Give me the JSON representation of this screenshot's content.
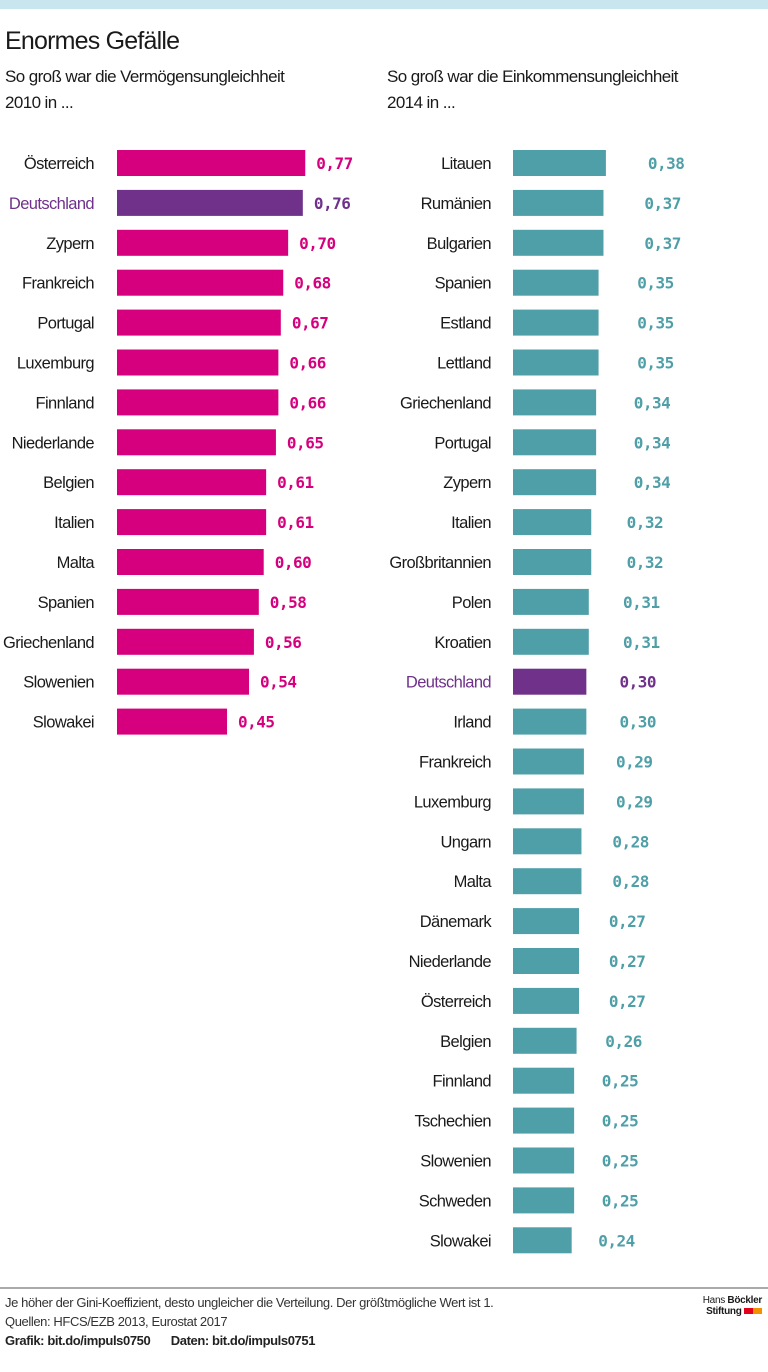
{
  "title": "Enormes Gefälle",
  "colors": {
    "left": "#d6007e",
    "highlight": "#6f318a",
    "right": "#4f9fa8",
    "topbar": "#c9e6ef"
  },
  "chart_data": [
    {
      "type": "bar",
      "orientation": "horizontal",
      "subtitle": "So groß war die Vermögensungleichheit\n2010 in ...",
      "highlight": "Deutschland",
      "categories": [
        "Österreich",
        "Deutschland",
        "Zypern",
        "Frankreich",
        "Portugal",
        "Luxemburg",
        "Finnland",
        "Niederlande",
        "Belgien",
        "Italien",
        "Malta",
        "Spanien",
        "Griechenland",
        "Slowenien",
        "Slowakei"
      ],
      "values": [
        0.77,
        0.76,
        0.7,
        0.68,
        0.67,
        0.66,
        0.66,
        0.65,
        0.61,
        0.61,
        0.6,
        0.58,
        0.56,
        0.54,
        0.45
      ],
      "labels": [
        "0,77",
        "0,76",
        "0,70",
        "0,68",
        "0,67",
        "0,66",
        "0,66",
        "0,65",
        "0,61",
        "0,61",
        "0,60",
        "0,58",
        "0,56",
        "0,54",
        "0,45"
      ]
    },
    {
      "type": "bar",
      "orientation": "horizontal",
      "subtitle": "So groß war die Einkommensungleichheit\n2014 in ...",
      "highlight": "Deutschland",
      "categories": [
        "Litauen",
        "Rumänien",
        "Bulgarien",
        "Spanien",
        "Estland",
        "Lettland",
        "Griechenland",
        "Portugal",
        "Zypern",
        "Italien",
        "Großbritannien",
        "Polen",
        "Kroatien",
        "Deutschland",
        "Irland",
        "Frankreich",
        "Luxemburg",
        "Ungarn",
        "Malta",
        "Dänemark",
        "Niederlande",
        "Österreich",
        "Belgien",
        "Finnland",
        "Tschechien",
        "Slowenien",
        "Schweden",
        "Slowakei"
      ],
      "values": [
        0.38,
        0.37,
        0.37,
        0.35,
        0.35,
        0.35,
        0.34,
        0.34,
        0.34,
        0.32,
        0.32,
        0.31,
        0.31,
        0.3,
        0.3,
        0.29,
        0.29,
        0.28,
        0.28,
        0.27,
        0.27,
        0.27,
        0.26,
        0.25,
        0.25,
        0.25,
        0.25,
        0.24
      ],
      "labels": [
        "0,38",
        "0,37",
        "0,37",
        "0,35",
        "0,35",
        "0,35",
        "0,34",
        "0,34",
        "0,34",
        "0,32",
        "0,32",
        "0,31",
        "0,31",
        "0,30",
        "0,30",
        "0,29",
        "0,29",
        "0,28",
        "0,28",
        "0,27",
        "0,27",
        "0,27",
        "0,26",
        "0,25",
        "0,25",
        "0,25",
        "0,25",
        "0,24"
      ]
    }
  ],
  "footer": {
    "note": "Je höher der Gini-Koeffizient, desto ungleicher die Verteilung. Der größtmögliche Wert ist 1.",
    "sources": "Quellen: HFCS/EZB 2013, Eurostat 2017",
    "grafik": "Grafik: bit.do/impuls0750",
    "daten": "Daten: bit.do/impuls0751"
  },
  "logo": {
    "line1a": "Hans",
    "line1b": "Böckler",
    "line2": "Stiftung"
  }
}
